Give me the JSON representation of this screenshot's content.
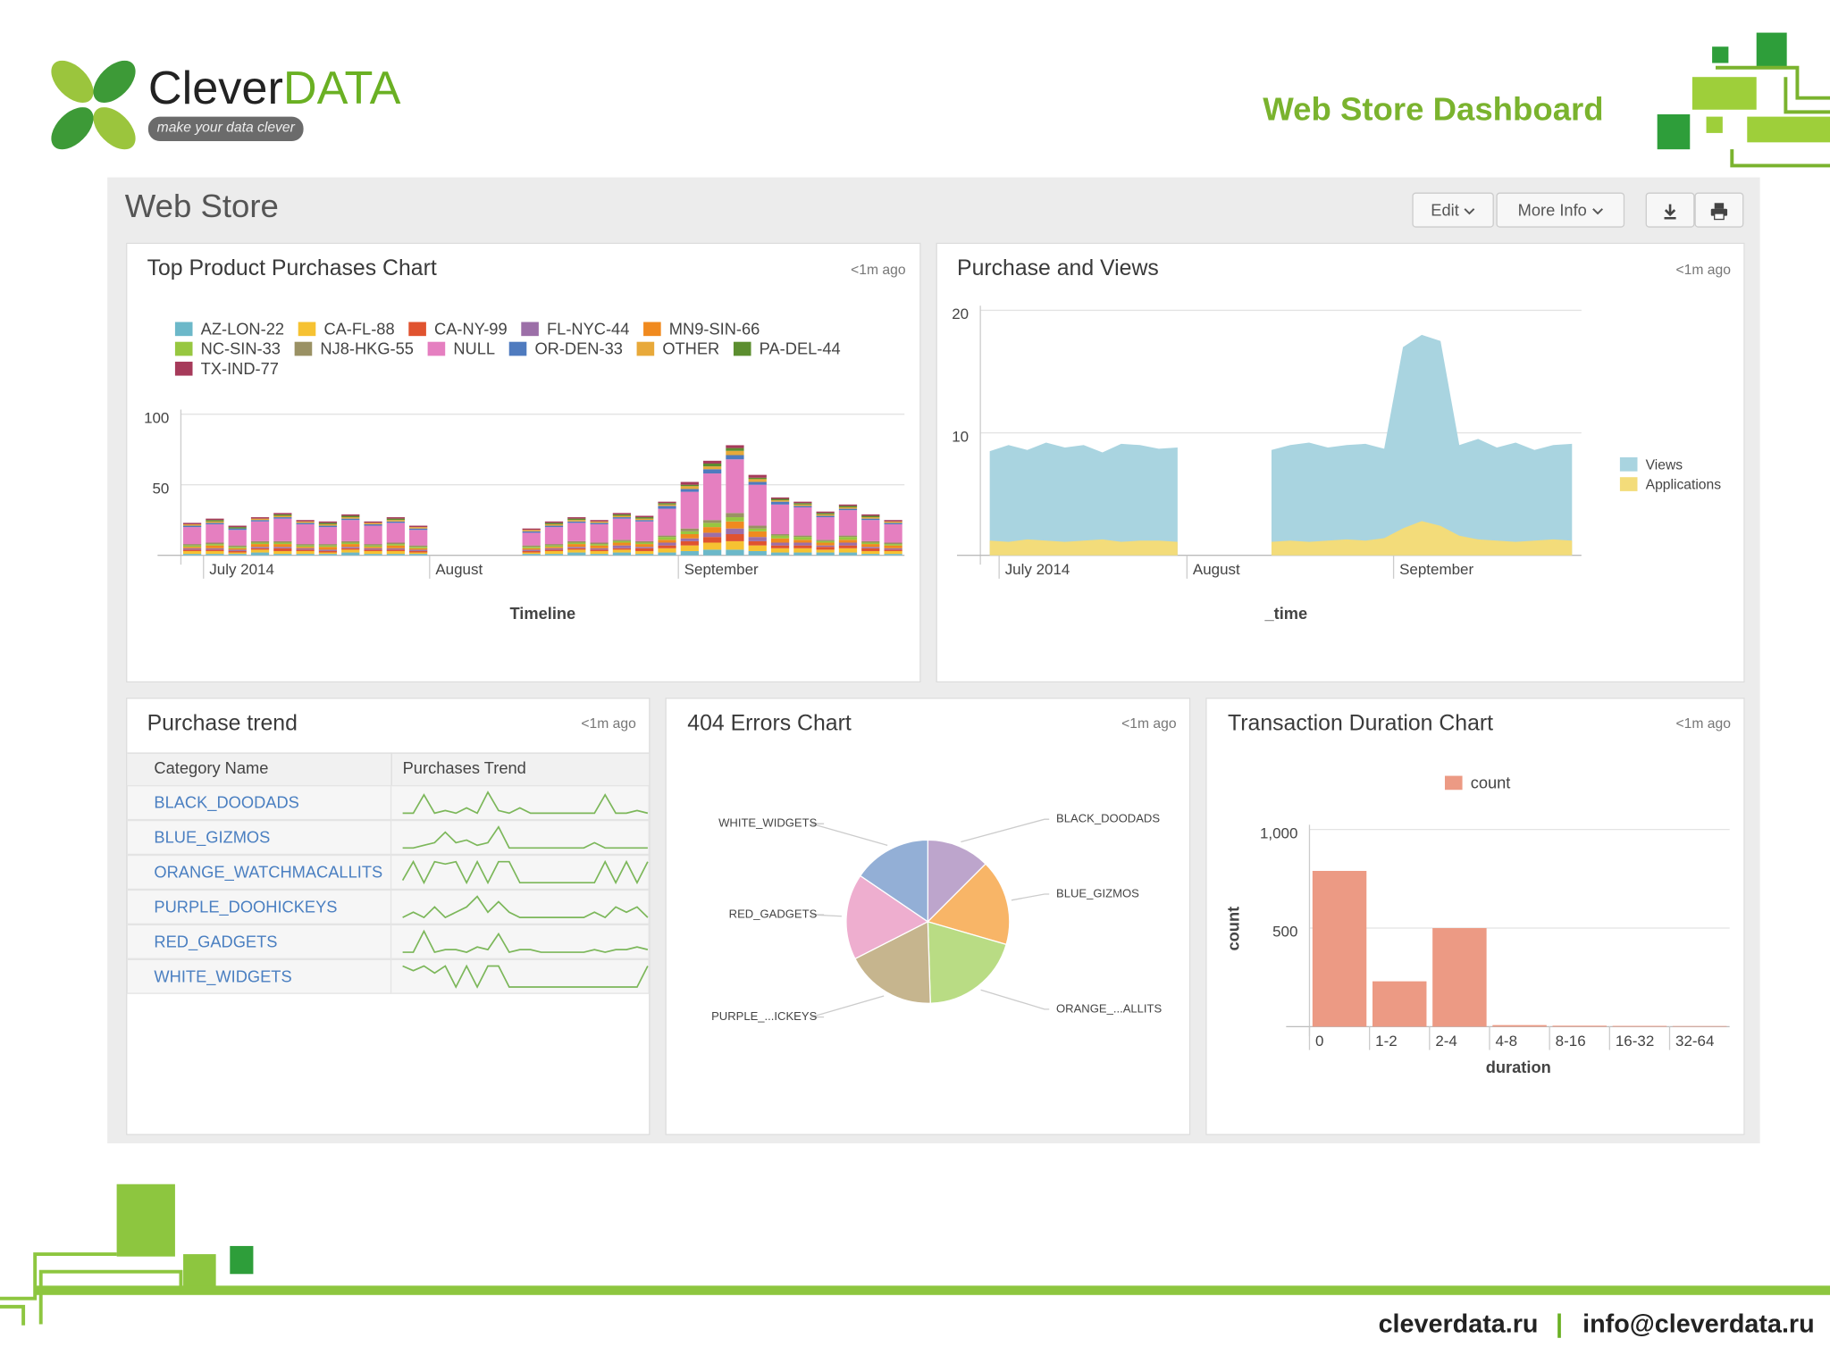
{
  "header": {
    "brand_left": "Clever",
    "brand_right": "DATA",
    "tagline": "make your data clever",
    "title": "Web Store Dashboard"
  },
  "dashboard": {
    "title": "Web Store",
    "buttons": [
      "Edit",
      "More Info"
    ]
  },
  "chart_data": [
    {
      "type": "bar",
      "stacked": true,
      "title": "Top Product Purchases Chart",
      "updated": "<1m ago",
      "x_label": "Timeline",
      "categories": [
        null,
        "July 2014",
        null,
        null,
        null,
        null,
        null,
        null,
        null,
        null,
        null,
        "August",
        null,
        null,
        null,
        null,
        null,
        null,
        null,
        null,
        null,
        null,
        "September",
        null,
        null,
        null,
        null,
        null,
        null,
        null,
        null,
        null
      ],
      "series": [
        {
          "name": "AZ-LON-22",
          "color": "#6cb8c9",
          "values": [
            1,
            1,
            1,
            2,
            1,
            1,
            1,
            2,
            1,
            1,
            1,
            null,
            null,
            null,
            null,
            1,
            1,
            2,
            1,
            2,
            1,
            2,
            3,
            4,
            4,
            3,
            2,
            2,
            2,
            2,
            1,
            1
          ]
        },
        {
          "name": "CA-FL-88",
          "color": "#f6c232",
          "values": [
            2,
            2,
            1,
            2,
            2,
            2,
            1,
            2,
            2,
            2,
            1,
            null,
            null,
            null,
            null,
            1,
            2,
            2,
            2,
            2,
            2,
            3,
            4,
            5,
            6,
            4,
            3,
            3,
            2,
            3,
            2,
            2
          ]
        },
        {
          "name": "CA-NY-99",
          "color": "#e0532f",
          "values": [
            1,
            1,
            1,
            1,
            2,
            1,
            1,
            1,
            1,
            1,
            1,
            null,
            null,
            null,
            null,
            1,
            1,
            1,
            1,
            1,
            2,
            2,
            3,
            4,
            5,
            3,
            2,
            2,
            2,
            2,
            2,
            1
          ]
        },
        {
          "name": "FL-NYC-44",
          "color": "#9c6fa8",
          "values": [
            1,
            1,
            1,
            1,
            1,
            1,
            1,
            1,
            1,
            1,
            1,
            null,
            null,
            null,
            null,
            1,
            1,
            1,
            1,
            2,
            1,
            2,
            2,
            3,
            4,
            3,
            2,
            2,
            1,
            2,
            1,
            1
          ]
        },
        {
          "name": "MN9-SIN-66",
          "color": "#f08a1f",
          "values": [
            1,
            2,
            1,
            2,
            2,
            1,
            2,
            2,
            1,
            2,
            1,
            null,
            null,
            null,
            null,
            1,
            1,
            2,
            2,
            2,
            2,
            2,
            3,
            4,
            5,
            4,
            3,
            2,
            2,
            2,
            2,
            2
          ]
        },
        {
          "name": "NC-SIN-33",
          "color": "#97c740",
          "values": [
            1,
            1,
            1,
            1,
            1,
            1,
            1,
            1,
            1,
            1,
            1,
            null,
            null,
            null,
            null,
            1,
            1,
            1,
            1,
            1,
            1,
            2,
            2,
            3,
            3,
            2,
            2,
            2,
            1,
            2,
            1,
            1
          ]
        },
        {
          "name": "NJ8-HKG-55",
          "color": "#9a9164",
          "values": [
            1,
            1,
            1,
            1,
            1,
            1,
            1,
            1,
            1,
            1,
            1,
            null,
            null,
            null,
            null,
            1,
            1,
            1,
            1,
            1,
            1,
            1,
            2,
            2,
            3,
            2,
            1,
            1,
            1,
            1,
            1,
            1
          ]
        },
        {
          "name": "NULL",
          "color": "#e57fc0",
          "values": [
            12,
            13,
            11,
            14,
            16,
            14,
            12,
            15,
            13,
            14,
            11,
            null,
            null,
            null,
            null,
            9,
            12,
            13,
            13,
            15,
            14,
            19,
            26,
            33,
            38,
            29,
            21,
            20,
            16,
            18,
            15,
            13
          ]
        },
        {
          "name": "OR-DEN-33",
          "color": "#4f7bbf",
          "values": [
            1,
            1,
            1,
            1,
            1,
            1,
            1,
            1,
            1,
            1,
            1,
            null,
            null,
            null,
            null,
            1,
            1,
            1,
            1,
            1,
            1,
            2,
            2,
            3,
            3,
            2,
            2,
            1,
            1,
            1,
            1,
            1
          ]
        },
        {
          "name": "OTHER",
          "color": "#e8a93a",
          "values": [
            1,
            1,
            0,
            1,
            1,
            1,
            1,
            1,
            1,
            1,
            1,
            null,
            null,
            null,
            null,
            1,
            1,
            1,
            1,
            1,
            1,
            1,
            2,
            2,
            3,
            2,
            1,
            1,
            1,
            1,
            1,
            1
          ]
        },
        {
          "name": "PA-DEL-44",
          "color": "#5c8e2f",
          "values": [
            0,
            1,
            1,
            0,
            1,
            0,
            1,
            1,
            0,
            1,
            0,
            null,
            null,
            null,
            null,
            0,
            1,
            1,
            0,
            1,
            1,
            1,
            1,
            2,
            2,
            1,
            1,
            1,
            1,
            1,
            1,
            0
          ]
        },
        {
          "name": "TX-IND-77",
          "color": "#a63a5a",
          "values": [
            1,
            1,
            1,
            1,
            1,
            1,
            1,
            1,
            1,
            1,
            1,
            null,
            null,
            null,
            null,
            1,
            1,
            1,
            1,
            1,
            1,
            1,
            2,
            2,
            2,
            2,
            1,
            1,
            1,
            1,
            1,
            1
          ]
        }
      ],
      "ylim": [
        0,
        100
      ],
      "yticks": [
        50,
        100
      ],
      "grid": true,
      "legend": "top"
    },
    {
      "type": "area",
      "title": "Purchase and Views",
      "updated": "<1m ago",
      "x_label": "_time",
      "categories": [
        null,
        "July 2014",
        null,
        null,
        null,
        null,
        null,
        null,
        null,
        null,
        null,
        "August",
        null,
        null,
        null,
        null,
        null,
        null,
        null,
        null,
        null,
        null,
        "September",
        null,
        null,
        null,
        null,
        null,
        null,
        null,
        null,
        null
      ],
      "series": [
        {
          "name": "Views",
          "color": "#a9d4e0",
          "values": [
            8.5,
            9,
            8.6,
            9.2,
            8.8,
            9,
            8.4,
            9.1,
            9,
            8.7,
            8.8,
            null,
            null,
            null,
            null,
            8.6,
            9,
            9.2,
            8.8,
            9,
            9.1,
            8.7,
            17,
            18,
            17.5,
            9,
            9.5,
            8.8,
            9.2,
            8.6,
            9,
            9.1
          ]
        },
        {
          "name": "Applications",
          "color": "#f3dc7a",
          "values": [
            1.2,
            1.1,
            1.3,
            1.2,
            1.1,
            1.2,
            1.3,
            1.1,
            1.2,
            1.2,
            1.1,
            null,
            null,
            null,
            null,
            1.1,
            1.2,
            1.1,
            1.2,
            1.3,
            1.2,
            1.4,
            2.2,
            2.8,
            2.4,
            1.6,
            1.3,
            1.2,
            1.1,
            1.2,
            1.3,
            1.2
          ]
        }
      ],
      "ylim": [
        0,
        20
      ],
      "yticks": [
        10,
        20
      ],
      "grid": true,
      "legend": "right"
    },
    {
      "type": "pie",
      "title": "404 Errors Chart",
      "updated": "<1m ago",
      "categories": [
        "BLACK_DOODADS",
        "BLUE_GIZMOS",
        "ORANGE_...ALLITS",
        "PURPLE_...ICKEYS",
        "RED_GADGETS",
        "WHITE_WIDGETS"
      ],
      "values": [
        12.5,
        17,
        20,
        18,
        17,
        15.5
      ],
      "colors": [
        "#bda5cc",
        "#f8b567",
        "#b9dc84",
        "#c6b58e",
        "#eeaecf",
        "#93afd6"
      ]
    },
    {
      "type": "bar",
      "title": "Transaction Duration Chart",
      "updated": "<1m ago",
      "x_label": "duration",
      "y_label": "count",
      "categories": [
        "0",
        "1-2",
        "2-4",
        "4-8",
        "8-16",
        "16-32",
        "32-64"
      ],
      "series": [
        {
          "name": "count",
          "color": "#ec9a84",
          "values": [
            790,
            230,
            500,
            8,
            5,
            4,
            3
          ]
        }
      ],
      "ylim": [
        0,
        1000
      ],
      "yticks": [
        500,
        {
          "value": 1000,
          "label": "1,000"
        }
      ],
      "grid": true,
      "legend": "top"
    }
  ],
  "table": {
    "title": "Purchase trend",
    "updated": "<1m ago",
    "columns": [
      "Category Name",
      "Purchases Trend"
    ],
    "rows": [
      {
        "name": "BLACK_DOODADS",
        "trend": [
          0,
          0,
          7,
          0,
          1,
          0,
          2,
          0,
          8,
          1,
          0,
          2,
          0,
          0,
          0,
          0,
          0,
          0,
          0,
          7,
          0,
          0,
          1,
          0
        ]
      },
      {
        "name": "BLUE_GIZMOS",
        "trend": [
          0,
          0,
          1,
          2,
          6,
          2,
          3,
          1,
          2,
          8,
          0,
          0,
          0,
          0,
          0,
          0,
          0,
          0,
          2,
          0,
          0,
          0,
          0,
          0
        ]
      },
      {
        "name": "ORANGE_WATCHMACALLITS",
        "trend": [
          1,
          9,
          0,
          9,
          8,
          9,
          0,
          9,
          0,
          9,
          9,
          0,
          0,
          0,
          0,
          0,
          0,
          0,
          0,
          9,
          0,
          9,
          0,
          9
        ]
      },
      {
        "name": "PURPLE_DOOHICKEYS",
        "trend": [
          0,
          1,
          0,
          2,
          0,
          1,
          2,
          4,
          1,
          3,
          1,
          0,
          0,
          0,
          0,
          0,
          0,
          0,
          1,
          0,
          2,
          1,
          2,
          0
        ]
      },
      {
        "name": "RED_GADGETS",
        "trend": [
          0,
          0,
          8,
          0,
          1,
          1,
          0,
          2,
          1,
          7,
          0,
          1,
          1,
          0,
          0,
          0,
          0,
          0,
          1,
          0,
          1,
          1,
          2,
          1
        ]
      },
      {
        "name": "WHITE_WIDGETS",
        "trend": [
          9,
          7,
          9,
          6,
          9,
          0,
          9,
          0,
          9,
          9,
          0,
          0,
          0,
          0,
          0,
          0,
          0,
          0,
          0,
          0,
          0,
          0,
          0,
          9
        ]
      }
    ]
  },
  "footer": {
    "site": "cleverdata.ru",
    "separator": "|",
    "email": "info@cleverdata.ru"
  }
}
